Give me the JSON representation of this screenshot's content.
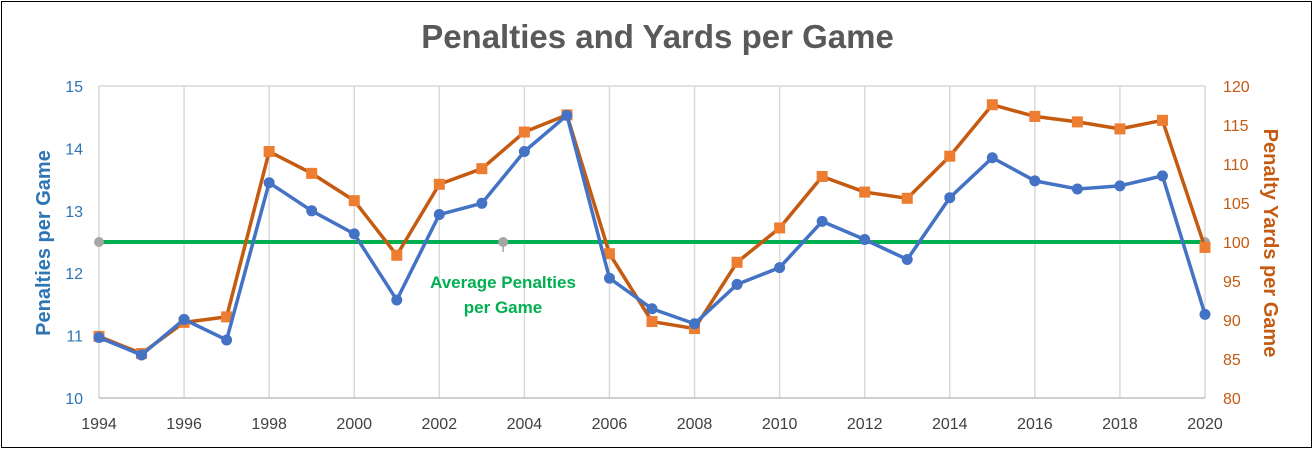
{
  "chart_data": {
    "type": "line",
    "title": "Penalties and Yards per Game",
    "ylabel_left": "Penalties per Game",
    "ylabel_right": "Penalty Yards per Game",
    "x": [
      1994,
      1995,
      1996,
      1997,
      1998,
      1999,
      2000,
      2001,
      2002,
      2003,
      2004,
      2005,
      2006,
      2007,
      2008,
      2009,
      2010,
      2011,
      2012,
      2013,
      2014,
      2015,
      2016,
      2017,
      2018,
      2019,
      2020
    ],
    "x_ticks": [
      "1994",
      "1996",
      "1998",
      "2000",
      "2002",
      "2004",
      "2006",
      "2008",
      "2010",
      "2012",
      "2014",
      "2016",
      "2018",
      "2020"
    ],
    "ylim_left": [
      10,
      15
    ],
    "y_ticks_left": [
      "10",
      "11",
      "12",
      "13",
      "14",
      "15"
    ],
    "ylim_right": [
      80,
      120
    ],
    "y_ticks_right": [
      "80",
      "85",
      "90",
      "95",
      "100",
      "105",
      "110",
      "115",
      "120"
    ],
    "grid": "vertical",
    "series": [
      {
        "name": "Penalties per Game",
        "axis": "left",
        "color": "#4472c4",
        "marker": "circle",
        "values": [
          10.97,
          10.69,
          11.26,
          10.93,
          13.45,
          13.0,
          12.63,
          11.57,
          12.94,
          13.12,
          13.95,
          14.53,
          11.92,
          11.43,
          11.19,
          11.82,
          12.09,
          12.83,
          12.54,
          12.22,
          13.21,
          13.85,
          13.48,
          13.35,
          13.4,
          13.56,
          11.34
        ]
      },
      {
        "name": "Penalty Yards per Game",
        "axis": "right",
        "color": "#c55a11",
        "marker": "square",
        "values": [
          87.9,
          85.7,
          89.7,
          90.4,
          111.6,
          108.8,
          105.3,
          98.3,
          107.4,
          109.4,
          114.1,
          116.3,
          98.5,
          89.8,
          88.9,
          97.4,
          101.8,
          108.4,
          106.4,
          105.6,
          111.0,
          117.6,
          116.1,
          115.4,
          114.5,
          115.6,
          99.3
        ]
      },
      {
        "name": "Average Penalties per Game",
        "axis": "left",
        "color": "#00b050",
        "marker": "none",
        "value": 12.5
      }
    ],
    "annotations": [
      {
        "text_line1": "Average Penalties",
        "text_line2": "per Game",
        "color": "#00b050"
      }
    ]
  }
}
